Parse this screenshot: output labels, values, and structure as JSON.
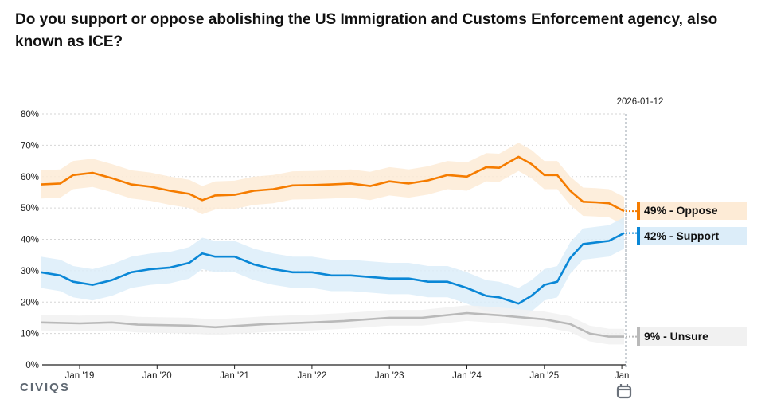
{
  "title": "Do you support or oppose abolishing the US Immigration and Customs Enforcement agency, also known as ICE?",
  "logo": "CIVIQS",
  "current_date": "2026-01-12",
  "chart_data": {
    "type": "line",
    "title": "Do you support or oppose abolishing the US Immigration and Customs Enforcement agency, also known as ICE?",
    "xlabel": "",
    "ylabel": "",
    "ylim": [
      0,
      80
    ],
    "xlim": [
      "2018-07",
      "2026-01-12"
    ],
    "y_ticks": [
      "0%",
      "10%",
      "20%",
      "30%",
      "40%",
      "50%",
      "60%",
      "70%",
      "80%"
    ],
    "x_ticks": [
      {
        "date": "2019-01",
        "label": "Jan '19"
      },
      {
        "date": "2020-01",
        "label": "Jan '20"
      },
      {
        "date": "2021-01",
        "label": "Jan '21"
      },
      {
        "date": "2022-01",
        "label": "Jan '22"
      },
      {
        "date": "2023-01",
        "label": "Jan '23"
      },
      {
        "date": "2024-01",
        "label": "Jan '24"
      },
      {
        "date": "2025-01",
        "label": "Jan '25"
      },
      {
        "date": "2026-01",
        "label": "Jan"
      }
    ],
    "grid": true,
    "series": [
      {
        "name": "Oppose",
        "color": "#f57c00",
        "band_color": "#fdebd6",
        "label": "49% - Oppose",
        "final": 49,
        "band": 4.5,
        "points": [
          [
            "2018-07",
            57.5
          ],
          [
            "2018-10",
            57.8
          ],
          [
            "2018-12",
            60.5
          ],
          [
            "2019-03",
            61.2
          ],
          [
            "2019-06",
            59.5
          ],
          [
            "2019-09",
            57.5
          ],
          [
            "2019-12",
            56.8
          ],
          [
            "2020-03",
            55.5
          ],
          [
            "2020-06",
            54.5
          ],
          [
            "2020-08",
            52.5
          ],
          [
            "2020-10",
            54
          ],
          [
            "2021-01",
            54.2
          ],
          [
            "2021-04",
            55.5
          ],
          [
            "2021-07",
            56
          ],
          [
            "2021-10",
            57.2
          ],
          [
            "2022-01",
            57.3
          ],
          [
            "2022-04",
            57.5
          ],
          [
            "2022-07",
            57.8
          ],
          [
            "2022-10",
            57
          ],
          [
            "2023-01",
            58.5
          ],
          [
            "2023-04",
            57.8
          ],
          [
            "2023-07",
            58.8
          ],
          [
            "2023-10",
            60.5
          ],
          [
            "2024-01",
            60
          ],
          [
            "2024-04",
            63
          ],
          [
            "2024-06",
            62.8
          ],
          [
            "2024-09",
            66.3
          ],
          [
            "2024-11",
            64
          ],
          [
            "2025-01",
            60.5
          ],
          [
            "2025-03",
            60.5
          ],
          [
            "2025-05",
            55.5
          ],
          [
            "2025-07",
            52
          ],
          [
            "2025-09",
            51.8
          ],
          [
            "2025-11",
            51.5
          ],
          [
            "2026-01-12",
            49
          ]
        ]
      },
      {
        "name": "Support",
        "color": "#0a87d6",
        "band_color": "#dcedf9",
        "label": "42% - Support",
        "final": 42,
        "band": 5,
        "points": [
          [
            "2018-07",
            29.5
          ],
          [
            "2018-10",
            28.5
          ],
          [
            "2018-12",
            26.5
          ],
          [
            "2019-03",
            25.5
          ],
          [
            "2019-06",
            27
          ],
          [
            "2019-09",
            29.5
          ],
          [
            "2019-12",
            30.5
          ],
          [
            "2020-03",
            31
          ],
          [
            "2020-06",
            32.5
          ],
          [
            "2020-08",
            35.5
          ],
          [
            "2020-10",
            34.5
          ],
          [
            "2021-01",
            34.5
          ],
          [
            "2021-04",
            32
          ],
          [
            "2021-07",
            30.5
          ],
          [
            "2021-10",
            29.5
          ],
          [
            "2022-01",
            29.5
          ],
          [
            "2022-04",
            28.5
          ],
          [
            "2022-07",
            28.5
          ],
          [
            "2022-10",
            28
          ],
          [
            "2023-01",
            27.5
          ],
          [
            "2023-04",
            27.5
          ],
          [
            "2023-07",
            26.5
          ],
          [
            "2023-10",
            26.5
          ],
          [
            "2024-01",
            24.5
          ],
          [
            "2024-04",
            22
          ],
          [
            "2024-06",
            21.5
          ],
          [
            "2024-09",
            19.5
          ],
          [
            "2024-11",
            22
          ],
          [
            "2025-01",
            25.5
          ],
          [
            "2025-03",
            26.5
          ],
          [
            "2025-05",
            34
          ],
          [
            "2025-07",
            38.5
          ],
          [
            "2025-09",
            39
          ],
          [
            "2025-11",
            39.5
          ],
          [
            "2026-01-12",
            42
          ]
        ]
      },
      {
        "name": "Unsure",
        "color": "#b9b9b9",
        "band_color": "#f1f1f1",
        "label": "9% - Unsure",
        "final": 9,
        "band": 2.5,
        "points": [
          [
            "2018-07",
            13.5
          ],
          [
            "2019-01",
            13.2
          ],
          [
            "2019-06",
            13.5
          ],
          [
            "2019-10",
            12.8
          ],
          [
            "2020-06",
            12.5
          ],
          [
            "2020-10",
            12
          ],
          [
            "2021-06",
            13
          ],
          [
            "2022-01",
            13.5
          ],
          [
            "2022-06",
            14
          ],
          [
            "2023-01",
            15
          ],
          [
            "2023-06",
            15
          ],
          [
            "2024-01",
            16.5
          ],
          [
            "2024-06",
            15.8
          ],
          [
            "2025-01",
            14.5
          ],
          [
            "2025-05",
            13
          ],
          [
            "2025-08",
            10
          ],
          [
            "2025-11",
            9
          ],
          [
            "2026-01-12",
            9
          ]
        ]
      }
    ]
  }
}
